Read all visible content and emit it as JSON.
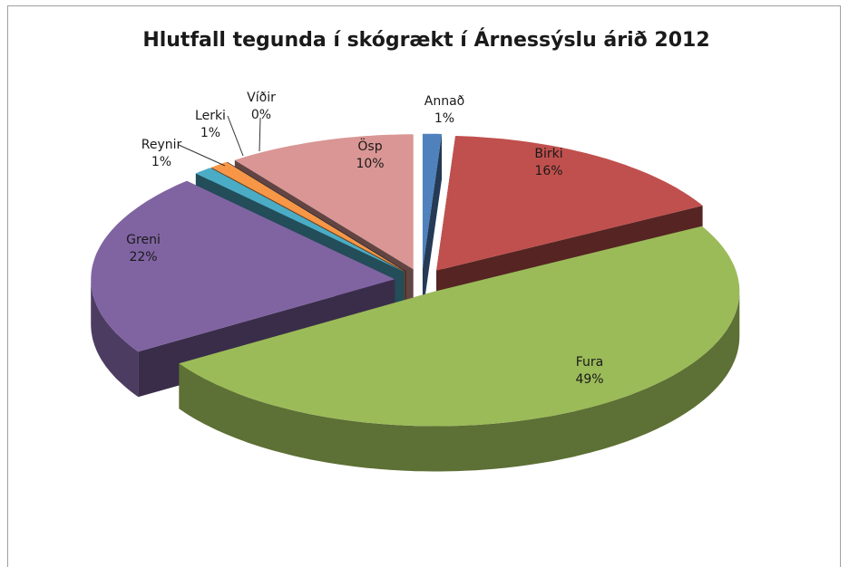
{
  "chart_data": {
    "type": "pie",
    "title": "Hlutfall tegunda í skógrækt í Árnessýslu árið 2012",
    "categories": [
      "Annað",
      "Birki",
      "Fura",
      "Greni",
      "Reynir",
      "Lerki",
      "Víðir",
      "Ösp"
    ],
    "values": [
      1,
      16,
      49,
      22,
      1,
      1,
      0,
      10
    ],
    "value_labels": [
      "1%",
      "16%",
      "49%",
      "22%",
      "1%",
      "1%",
      "0%",
      "10%"
    ],
    "colors": [
      "#4f81bd",
      "#c0504d",
      "#9bbb59",
      "#8064a2",
      "#4bacc6",
      "#f79646",
      "#2c4d75",
      "#d99694"
    ]
  }
}
